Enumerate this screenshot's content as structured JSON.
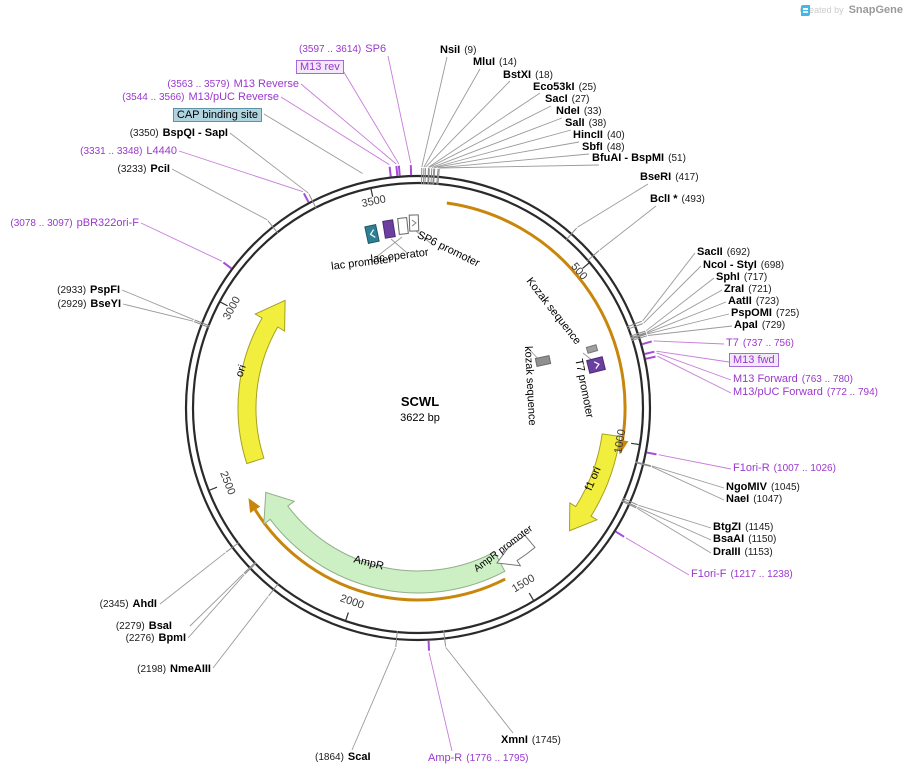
{
  "watermark": {
    "created_by": "Created by",
    "brand": "SnapGene"
  },
  "plasmid": {
    "name": "SCWL",
    "size": "3622 bp"
  },
  "scale": {
    "ticks": [
      "500",
      "1000",
      "1500",
      "2000",
      "2500",
      "3000",
      "3500"
    ]
  },
  "features": {
    "ori": "ori",
    "f1_ori": "f1 ori",
    "ampr": "AmpR",
    "ampr_promoter": "AmpR promoter",
    "lac_promoter": "lac promoter",
    "lac_operator": "lac operator",
    "sp6_promoter": "SP6 promoter",
    "kozak_upper": "Kozak sequence",
    "kozak_lower": "kozak sequence",
    "t7_promoter": "T7 promoter"
  },
  "callouts": [
    {
      "name": "NsiI",
      "pos": "(9)"
    },
    {
      "name": "MluI",
      "pos": "(14)"
    },
    {
      "name": "BstXI",
      "pos": "(18)"
    },
    {
      "name": "Eco53kI",
      "pos": "(25)"
    },
    {
      "name": "SacI",
      "pos": "(27)"
    },
    {
      "name": "NdeI",
      "pos": "(33)"
    },
    {
      "name": "SalI",
      "pos": "(38)"
    },
    {
      "name": "HincII",
      "pos": "(40)"
    },
    {
      "name": "SbfI",
      "pos": "(48)"
    },
    {
      "name": "BfuAI - BspMI",
      "pos": "(51)"
    },
    {
      "name": "BseRI",
      "pos": "(417)"
    },
    {
      "name": "BclI *",
      "pos": "(493)"
    },
    {
      "name": "SacII",
      "pos": "(692)"
    },
    {
      "name": "NcoI - StyI",
      "pos": "(698)"
    },
    {
      "name": "SphI",
      "pos": "(717)"
    },
    {
      "name": "ZraI",
      "pos": "(721)"
    },
    {
      "name": "AatII",
      "pos": "(723)"
    },
    {
      "name": "PspOMI",
      "pos": "(725)"
    },
    {
      "name": "ApaI",
      "pos": "(729)"
    },
    {
      "name": "T7",
      "pos": "(737 .. 756)"
    },
    {
      "name": "M13 fwd",
      "pos": ""
    },
    {
      "name": "M13 Forward",
      "pos": "(763 .. 780)"
    },
    {
      "name": "M13/pUC Forward",
      "pos": "(772 .. 794)"
    },
    {
      "name": "F1ori-R",
      "pos": "(1007 .. 1026)"
    },
    {
      "name": "NgoMIV",
      "pos": "(1045)"
    },
    {
      "name": "NaeI",
      "pos": "(1047)"
    },
    {
      "name": "BtgZI",
      "pos": "(1145)"
    },
    {
      "name": "BsaAI",
      "pos": "(1150)"
    },
    {
      "name": "DraIII",
      "pos": "(1153)"
    },
    {
      "name": "F1ori-F",
      "pos": "(1217 .. 1238)"
    },
    {
      "name": "XmnI",
      "pos": "(1745)"
    },
    {
      "name": "Amp-R",
      "pos": "(1776 .. 1795)"
    },
    {
      "name": "ScaI",
      "pos": "(1864)"
    },
    {
      "name": "NmeAIII",
      "pos": "(2198)"
    },
    {
      "name": "BpmI",
      "pos": "(2276)"
    },
    {
      "name": "BsaI",
      "pos": "(2279)"
    },
    {
      "name": "AhdI",
      "pos": "(2345)"
    },
    {
      "name": "BseYI",
      "pos": "(2929)"
    },
    {
      "name": "PspFI",
      "pos": "(2933)"
    },
    {
      "name": "pBR322ori-F",
      "pos": "(3078 .. 3097)"
    },
    {
      "name": "PciI",
      "pos": "(3233)"
    },
    {
      "name": "L4440",
      "pos": "(3331 .. 3348)"
    },
    {
      "name": "BspQI - SapI",
      "pos": "(3350)"
    },
    {
      "name": "CAP binding site",
      "pos": ""
    },
    {
      "name": "M13/pUC Reverse",
      "pos": "(3544 .. 3566)"
    },
    {
      "name": "M13 Reverse",
      "pos": "(3563 .. 3579)"
    },
    {
      "name": "M13 rev",
      "pos": ""
    },
    {
      "name": "SP6",
      "pos": "(3597 .. 3614)"
    }
  ]
}
